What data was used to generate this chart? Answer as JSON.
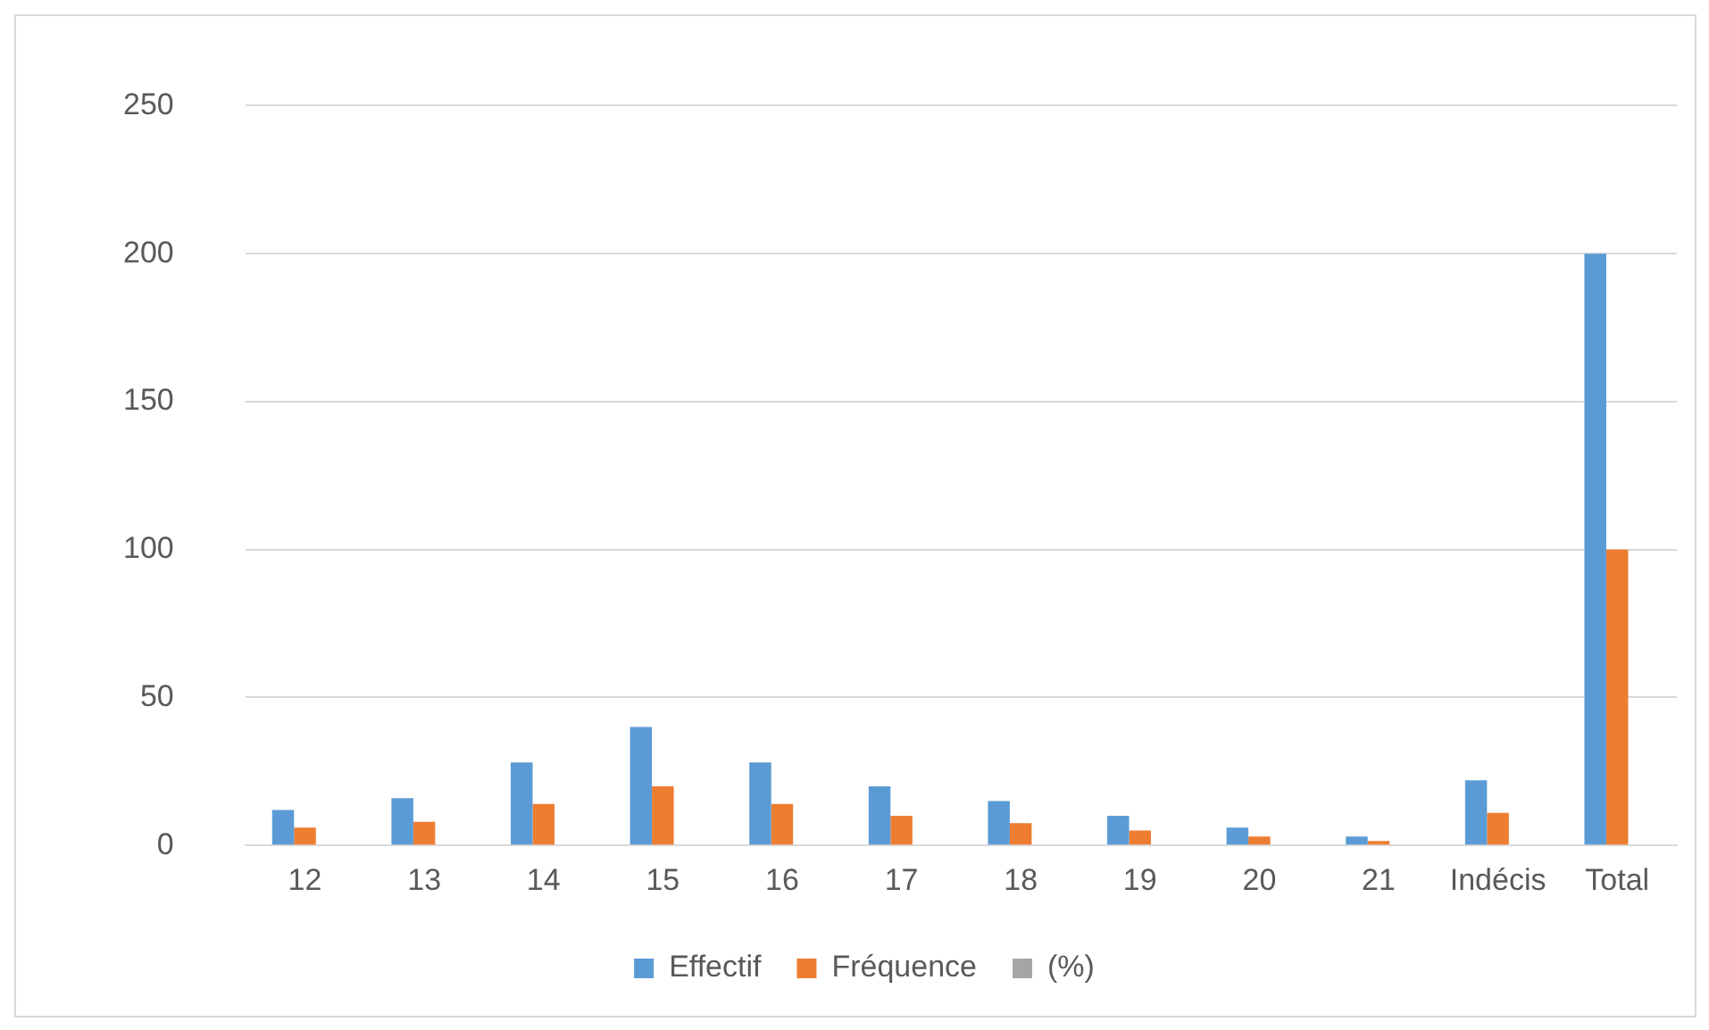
{
  "chart_data": {
    "type": "bar",
    "categories": [
      "12",
      "13",
      "14",
      "15",
      "16",
      "17",
      "18",
      "19",
      "20",
      "21",
      "Indécis",
      "Total"
    ],
    "series": [
      {
        "name": "Effectif",
        "color": "#5b9bd5",
        "values": [
          12,
          16,
          28,
          40,
          28,
          20,
          15,
          10,
          6,
          3,
          22,
          200
        ]
      },
      {
        "name": "Fréquence",
        "color": "#ed7d31",
        "values": [
          6,
          8,
          14,
          20,
          14,
          10,
          7.5,
          5,
          3,
          1.5,
          11,
          100
        ]
      },
      {
        "name": "(%)",
        "color": "#a5a5a5",
        "values": [
          null,
          null,
          null,
          null,
          null,
          null,
          null,
          null,
          null,
          null,
          null,
          null
        ]
      }
    ],
    "ylim": [
      0,
      250
    ],
    "yticks": [
      0,
      50,
      100,
      150,
      200,
      250
    ],
    "grid": "y",
    "legend": "bottom"
  }
}
